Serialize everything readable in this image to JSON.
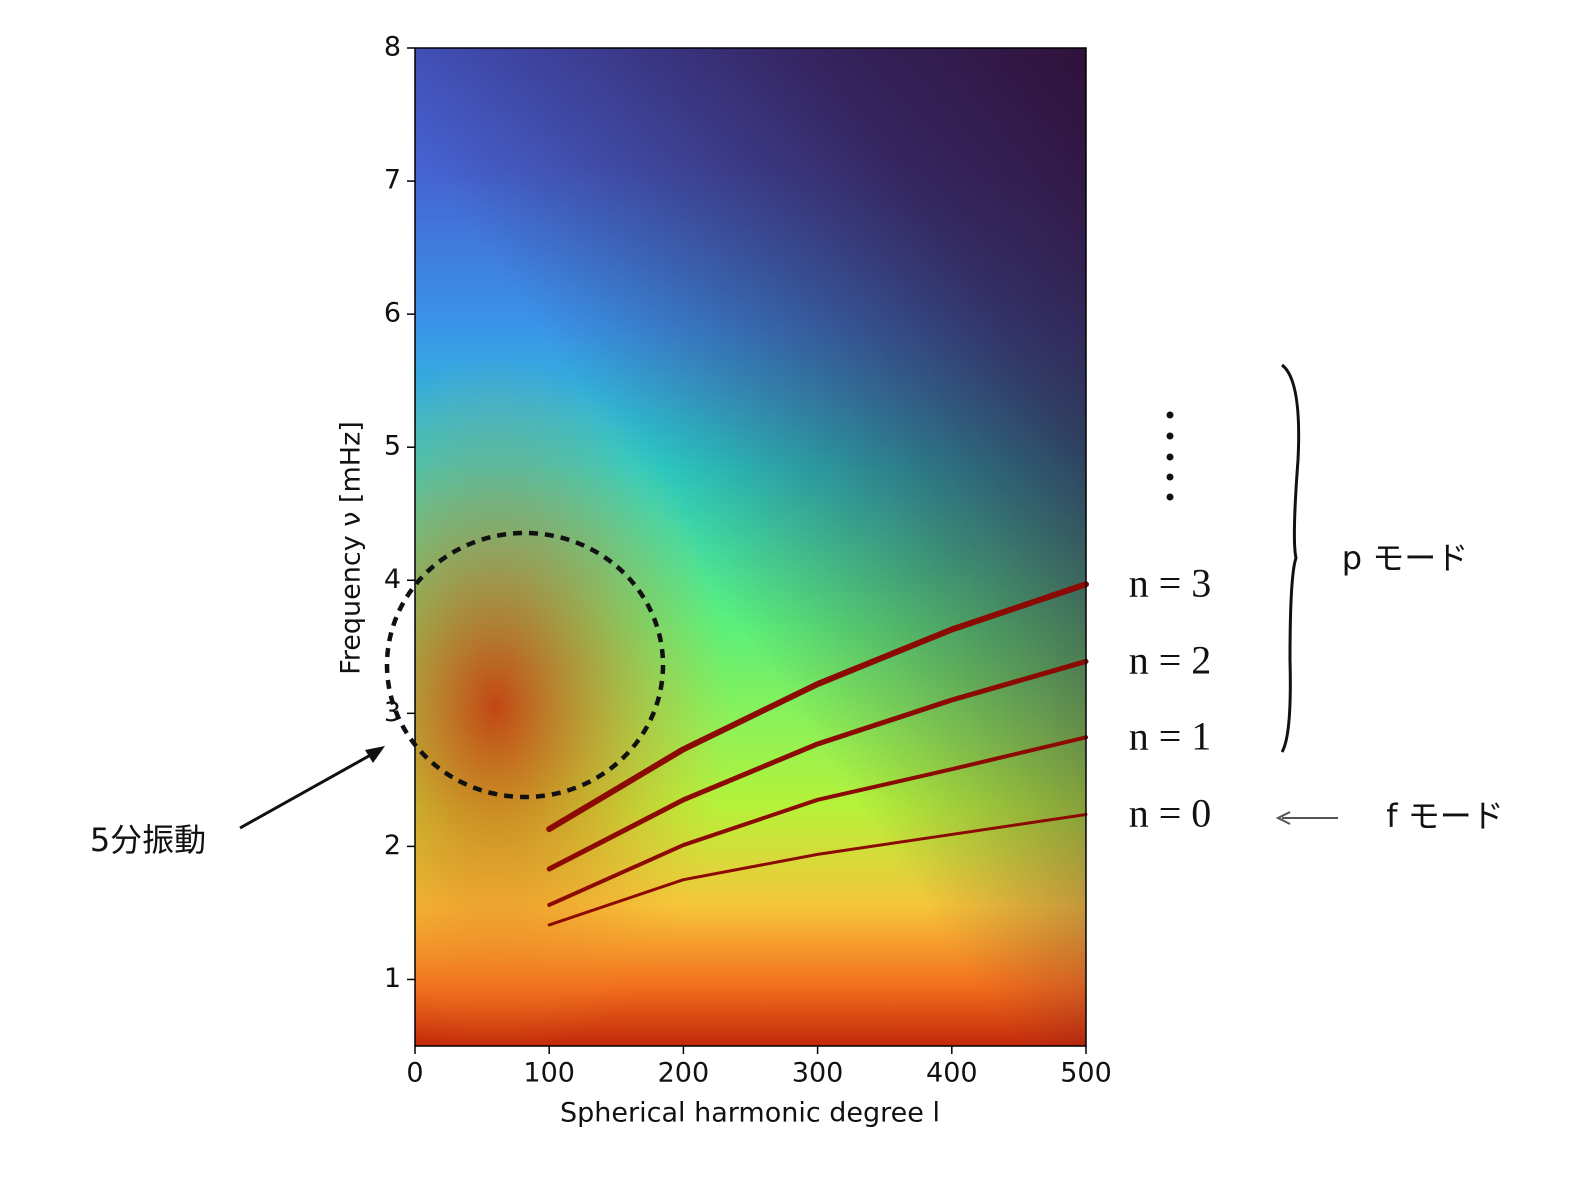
{
  "chart_data": {
    "type": "line",
    "xlabel": "Spherical harmonic degree l",
    "ylabel": "Frequency ν  [mHz]",
    "x": [
      100,
      200,
      300,
      400,
      500
    ],
    "series": [
      {
        "name": "n = 0",
        "color": "#8b0a03",
        "values": [
          1.41,
          1.75,
          1.94,
          2.09,
          2.24
        ]
      },
      {
        "name": "n = 1",
        "color": "#8b0a03",
        "values": [
          1.56,
          2.01,
          2.35,
          2.58,
          2.82
        ]
      },
      {
        "name": "n = 2",
        "color": "#8b0a03",
        "values": [
          1.83,
          2.35,
          2.77,
          3.1,
          3.39
        ]
      },
      {
        "name": "n = 3",
        "color": "#8b0a03",
        "values": [
          2.13,
          2.73,
          3.22,
          3.63,
          3.97
        ]
      }
    ],
    "xlim": [
      0,
      500
    ],
    "xticks": [
      0,
      100,
      200,
      300,
      400,
      500
    ],
    "ylim": [
      0.5,
      8
    ],
    "yticks": [
      1,
      2,
      3,
      4,
      5,
      6,
      7,
      8
    ],
    "annotations": {
      "five_minute": "5分振動",
      "p_mode": "p モード",
      "f_mode": "f モード"
    }
  }
}
